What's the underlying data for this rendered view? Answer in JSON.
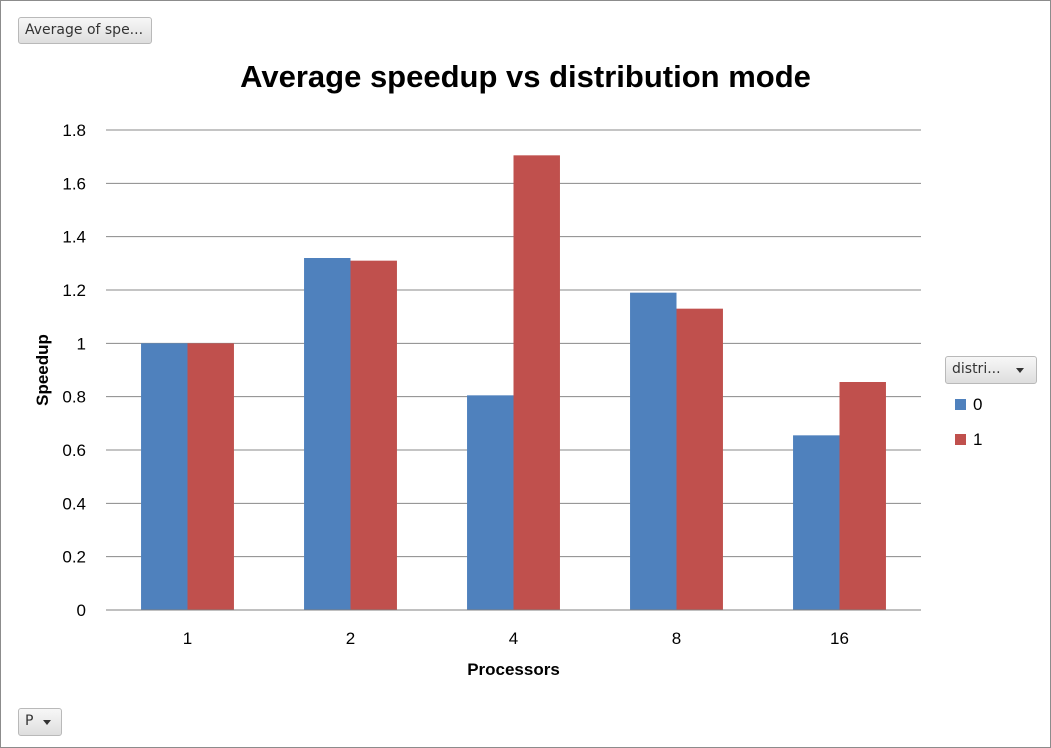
{
  "controls": {
    "measure_button_label": "Average of spe...",
    "legend_field_button_label": "distri...",
    "axis_field_button_label": "P"
  },
  "chart_data": {
    "type": "bar",
    "title": "Average speedup vs distribution mode",
    "xlabel": "Processors",
    "ylabel": "Speedup",
    "categories": [
      "1",
      "2",
      "4",
      "8",
      "16"
    ],
    "series": [
      {
        "name": "0",
        "color": "#4f81bd",
        "values": [
          1.0,
          1.32,
          0.805,
          1.19,
          0.655
        ]
      },
      {
        "name": "1",
        "color": "#c0504d",
        "values": [
          1.0,
          1.31,
          1.705,
          1.13,
          0.855
        ]
      }
    ],
    "ylim": [
      0,
      1.8
    ],
    "yticks": [
      "0",
      "0.2",
      "0.4",
      "0.6",
      "0.8",
      "1",
      "1.2",
      "1.4",
      "1.6",
      "1.8"
    ],
    "grid": true,
    "legend_position": "right"
  }
}
